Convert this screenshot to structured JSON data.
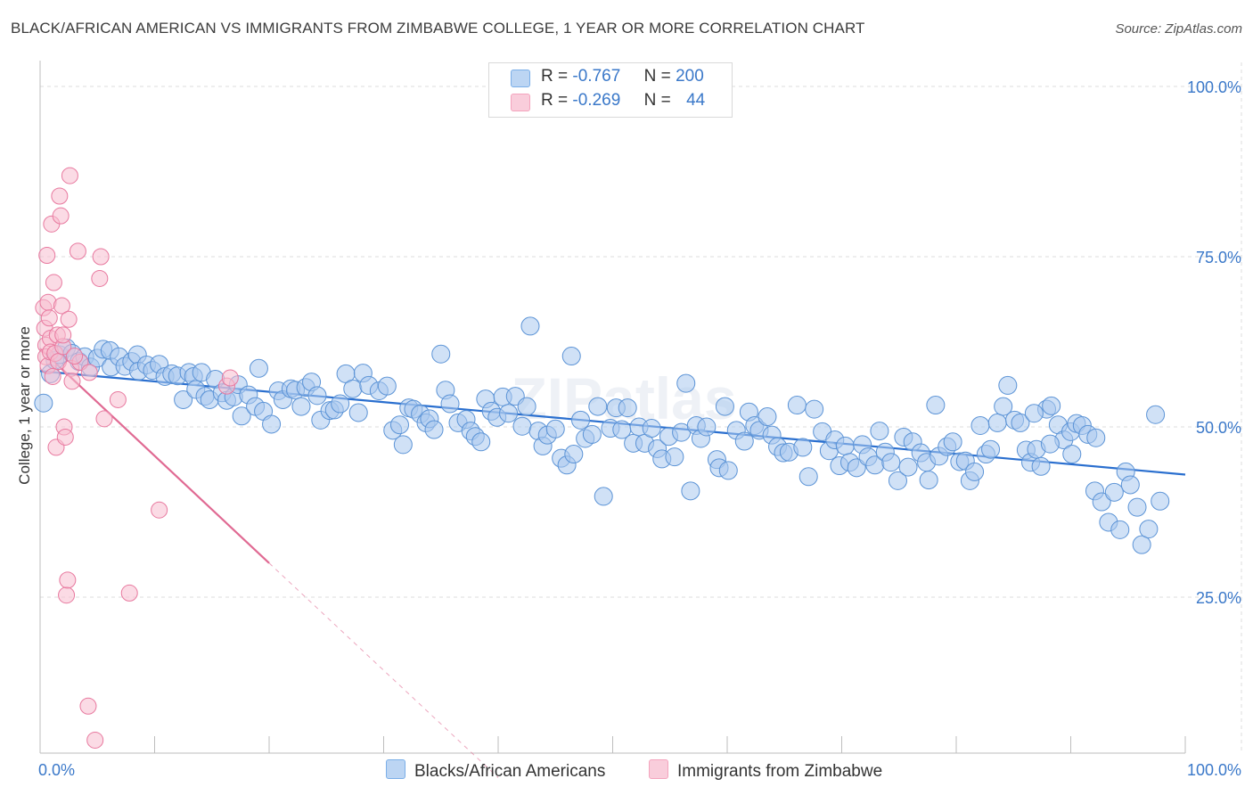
{
  "title": "BLACK/AFRICAN AMERICAN VS IMMIGRANTS FROM ZIMBABWE COLLEGE, 1 YEAR OR MORE CORRELATION CHART",
  "source": "Source: ZipAtlas.com",
  "watermark": "ZIPatlas",
  "legend": {
    "rows": [
      {
        "r_label": "R =",
        "r_value": "-0.767",
        "n_label": "N =",
        "n_value": "200",
        "color": "#7aaee8"
      },
      {
        "r_label": "R =",
        "r_value": "-0.269",
        "n_label": "N =",
        "n_value": "44",
        "color": "#f4a3bd"
      }
    ]
  },
  "bottom_legend": {
    "series1": "Blacks/African Americans",
    "series2": "Immigrants from Zimbabwe"
  },
  "colors": {
    "blue_fill": "#a9c8ef",
    "blue_stroke": "#5b93d6",
    "blue_line": "#2a6fcf",
    "pink_fill": "#f7bdd0",
    "pink_stroke": "#e8799f",
    "pink_line": "#e06a93",
    "grid": "#dddddd",
    "tick_label": "#3a78c9"
  },
  "chart_data": {
    "type": "scatter",
    "ylabel": "College, 1 year or more",
    "xlim": [
      0,
      100
    ],
    "ylim": [
      0,
      100
    ],
    "x_tick_labels": [
      "0.0%",
      "100.0%"
    ],
    "y_tick_labels": [
      "100.0%",
      "75.0%",
      "50.0%",
      "25.0%"
    ],
    "y_ticks": [
      100,
      75,
      50,
      25
    ],
    "grid": true,
    "series": [
      {
        "name": "Blacks/African Americans",
        "color": "#7aaee8",
        "trend": {
          "x": [
            0,
            100
          ],
          "y": [
            58.2,
            43.0
          ]
        },
        "points": [
          [
            0.3,
            53.5
          ],
          [
            0.9,
            57.8
          ],
          [
            1.3,
            59.8
          ],
          [
            1.7,
            60.6
          ],
          [
            2.3,
            61.6
          ],
          [
            2.8,
            60.8
          ],
          [
            3.4,
            59.6
          ],
          [
            3.9,
            60.3
          ],
          [
            4.4,
            58.8
          ],
          [
            5.0,
            60.1
          ],
          [
            5.5,
            61.4
          ],
          [
            6.1,
            61.2
          ],
          [
            6.2,
            58.8
          ],
          [
            6.9,
            60.3
          ],
          [
            7.4,
            58.9
          ],
          [
            8.0,
            59.6
          ],
          [
            8.5,
            60.6
          ],
          [
            8.6,
            58.2
          ],
          [
            9.3,
            59.1
          ],
          [
            9.8,
            58.3
          ],
          [
            10.4,
            59.2
          ],
          [
            10.9,
            57.4
          ],
          [
            11.5,
            57.8
          ],
          [
            12.0,
            57.5
          ],
          [
            12.5,
            54.0
          ],
          [
            13.0,
            58.0
          ],
          [
            13.4,
            57.4
          ],
          [
            13.6,
            55.5
          ],
          [
            14.1,
            58.0
          ],
          [
            14.4,
            54.5
          ],
          [
            14.8,
            54.0
          ],
          [
            15.3,
            57.0
          ],
          [
            15.9,
            55.0
          ],
          [
            16.3,
            53.9
          ],
          [
            16.9,
            54.4
          ],
          [
            17.3,
            56.2
          ],
          [
            17.6,
            51.6
          ],
          [
            18.2,
            54.7
          ],
          [
            18.8,
            53.0
          ],
          [
            19.1,
            58.6
          ],
          [
            19.5,
            52.3
          ],
          [
            20.2,
            50.4
          ],
          [
            20.8,
            55.3
          ],
          [
            21.2,
            54.0
          ],
          [
            21.9,
            55.6
          ],
          [
            22.3,
            55.4
          ],
          [
            22.8,
            53.0
          ],
          [
            23.2,
            55.8
          ],
          [
            23.7,
            56.6
          ],
          [
            24.2,
            54.6
          ],
          [
            24.5,
            51.0
          ],
          [
            25.3,
            52.4
          ],
          [
            25.7,
            52.5
          ],
          [
            26.2,
            53.4
          ],
          [
            26.7,
            57.8
          ],
          [
            27.3,
            55.6
          ],
          [
            27.8,
            52.1
          ],
          [
            28.2,
            57.9
          ],
          [
            28.7,
            56.1
          ],
          [
            29.6,
            55.3
          ],
          [
            30.3,
            56.0
          ],
          [
            30.8,
            49.5
          ],
          [
            31.4,
            50.3
          ],
          [
            31.7,
            47.4
          ],
          [
            32.2,
            52.8
          ],
          [
            32.6,
            52.6
          ],
          [
            33.2,
            51.9
          ],
          [
            33.7,
            50.6
          ],
          [
            34.0,
            51.2
          ],
          [
            34.4,
            49.6
          ],
          [
            35.0,
            60.7
          ],
          [
            35.4,
            55.4
          ],
          [
            35.8,
            53.4
          ],
          [
            36.5,
            50.6
          ],
          [
            37.2,
            51.1
          ],
          [
            37.6,
            49.4
          ],
          [
            38.0,
            48.6
          ],
          [
            38.5,
            47.8
          ],
          [
            38.9,
            54.1
          ],
          [
            39.4,
            52.3
          ],
          [
            39.9,
            51.4
          ],
          [
            40.4,
            54.4
          ],
          [
            40.9,
            52.0
          ],
          [
            41.5,
            54.5
          ],
          [
            42.1,
            50.1
          ],
          [
            42.5,
            53.0
          ],
          [
            42.8,
            64.8
          ],
          [
            43.5,
            49.4
          ],
          [
            43.9,
            47.2
          ],
          [
            44.3,
            48.8
          ],
          [
            45.0,
            49.7
          ],
          [
            45.5,
            45.4
          ],
          [
            46.0,
            44.4
          ],
          [
            46.4,
            60.4
          ],
          [
            46.6,
            46.0
          ],
          [
            47.2,
            51.0
          ],
          [
            47.6,
            48.3
          ],
          [
            48.2,
            48.9
          ],
          [
            48.7,
            53.0
          ],
          [
            49.2,
            39.8
          ],
          [
            49.8,
            49.8
          ],
          [
            50.3,
            52.8
          ],
          [
            50.8,
            49.6
          ],
          [
            51.3,
            52.8
          ],
          [
            51.8,
            47.6
          ],
          [
            52.3,
            50.0
          ],
          [
            52.8,
            47.6
          ],
          [
            53.4,
            49.8
          ],
          [
            53.9,
            46.8
          ],
          [
            54.3,
            45.3
          ],
          [
            54.9,
            48.6
          ],
          [
            55.4,
            45.6
          ],
          [
            56.0,
            49.2
          ],
          [
            56.4,
            56.4
          ],
          [
            56.8,
            40.6
          ],
          [
            57.3,
            50.2
          ],
          [
            57.7,
            48.3
          ],
          [
            58.2,
            50.0
          ],
          [
            59.1,
            45.2
          ],
          [
            59.3,
            44.0
          ],
          [
            59.8,
            53.0
          ],
          [
            60.1,
            43.6
          ],
          [
            60.8,
            49.5
          ],
          [
            61.5,
            47.9
          ],
          [
            61.9,
            52.2
          ],
          [
            62.4,
            50.2
          ],
          [
            62.8,
            49.5
          ],
          [
            63.5,
            51.5
          ],
          [
            63.9,
            48.8
          ],
          [
            64.4,
            47.1
          ],
          [
            64.9,
            46.2
          ],
          [
            65.4,
            46.3
          ],
          [
            66.1,
            53.2
          ],
          [
            66.6,
            47.0
          ],
          [
            67.1,
            42.7
          ],
          [
            67.6,
            52.6
          ],
          [
            68.3,
            49.3
          ],
          [
            68.9,
            46.5
          ],
          [
            69.4,
            48.1
          ],
          [
            69.8,
            44.3
          ],
          [
            70.3,
            47.2
          ],
          [
            70.7,
            44.8
          ],
          [
            71.3,
            44.0
          ],
          [
            71.8,
            47.4
          ],
          [
            72.3,
            45.6
          ],
          [
            72.9,
            44.4
          ],
          [
            73.3,
            49.4
          ],
          [
            73.8,
            46.3
          ],
          [
            74.3,
            44.8
          ],
          [
            74.9,
            42.1
          ],
          [
            75.4,
            48.5
          ],
          [
            75.8,
            44.1
          ],
          [
            76.2,
            47.8
          ],
          [
            76.9,
            46.2
          ],
          [
            77.4,
            44.8
          ],
          [
            77.6,
            42.2
          ],
          [
            78.2,
            53.2
          ],
          [
            78.5,
            45.7
          ],
          [
            79.2,
            47.1
          ],
          [
            79.7,
            47.8
          ],
          [
            80.3,
            44.9
          ],
          [
            80.8,
            45.0
          ],
          [
            81.2,
            42.1
          ],
          [
            81.6,
            43.4
          ],
          [
            82.1,
            50.2
          ],
          [
            82.6,
            46.0
          ],
          [
            83.0,
            46.7
          ],
          [
            83.6,
            50.6
          ],
          [
            84.1,
            53.0
          ],
          [
            84.5,
            56.1
          ],
          [
            85.1,
            51.0
          ],
          [
            85.6,
            50.6
          ],
          [
            86.1,
            46.6
          ],
          [
            86.5,
            44.8
          ],
          [
            87.0,
            46.7
          ],
          [
            87.4,
            44.2
          ],
          [
            87.9,
            52.6
          ],
          [
            88.3,
            53.1
          ],
          [
            88.9,
            50.3
          ],
          [
            89.4,
            48.1
          ],
          [
            90.0,
            49.3
          ],
          [
            90.5,
            50.5
          ],
          [
            91.0,
            50.2
          ],
          [
            91.5,
            48.9
          ],
          [
            92.1,
            40.6
          ],
          [
            92.7,
            39.0
          ],
          [
            93.3,
            36.0
          ],
          [
            93.8,
            40.4
          ],
          [
            94.3,
            34.9
          ],
          [
            94.8,
            43.4
          ],
          [
            95.2,
            41.5
          ],
          [
            95.8,
            38.2
          ],
          [
            96.2,
            32.7
          ],
          [
            96.8,
            35.0
          ],
          [
            97.4,
            51.8
          ],
          [
            97.8,
            39.1
          ],
          [
            92.2,
            48.4
          ],
          [
            90.1,
            46.0
          ],
          [
            88.2,
            47.5
          ],
          [
            86.8,
            52.0
          ]
        ]
      },
      {
        "name": "Immigrants from Zimbabwe",
        "color": "#f4a3bd",
        "trend": {
          "x": [
            0,
            20
          ],
          "y": [
            61.5,
            30.0
          ]
        },
        "points": [
          [
            0.3,
            67.5
          ],
          [
            0.4,
            64.5
          ],
          [
            0.5,
            62.0
          ],
          [
            0.5,
            60.3
          ],
          [
            0.6,
            75.2
          ],
          [
            0.7,
            68.3
          ],
          [
            0.7,
            59.0
          ],
          [
            0.8,
            66.0
          ],
          [
            0.9,
            63.0
          ],
          [
            0.9,
            61.0
          ],
          [
            1.0,
            79.8
          ],
          [
            1.1,
            57.4
          ],
          [
            1.2,
            71.2
          ],
          [
            1.3,
            60.8
          ],
          [
            1.4,
            47.0
          ],
          [
            1.5,
            63.5
          ],
          [
            1.6,
            59.6
          ],
          [
            1.7,
            83.9
          ],
          [
            1.8,
            81.0
          ],
          [
            1.9,
            67.8
          ],
          [
            2.0,
            61.8
          ],
          [
            2.0,
            63.5
          ],
          [
            2.1,
            50.0
          ],
          [
            2.2,
            48.5
          ],
          [
            2.3,
            25.3
          ],
          [
            2.4,
            27.5
          ],
          [
            2.5,
            65.8
          ],
          [
            2.6,
            86.9
          ],
          [
            2.7,
            58.6
          ],
          [
            2.8,
            56.7
          ],
          [
            3.3,
            75.8
          ],
          [
            3.5,
            59.5
          ],
          [
            3.0,
            60.4
          ],
          [
            4.2,
            9.0
          ],
          [
            4.3,
            58.0
          ],
          [
            4.8,
            4.0
          ],
          [
            5.2,
            71.8
          ],
          [
            5.3,
            75.0
          ],
          [
            5.6,
            51.2
          ],
          [
            6.8,
            54.0
          ],
          [
            7.8,
            25.6
          ],
          [
            10.4,
            37.8
          ],
          [
            16.3,
            56.0
          ],
          [
            16.6,
            57.2
          ]
        ]
      }
    ]
  }
}
